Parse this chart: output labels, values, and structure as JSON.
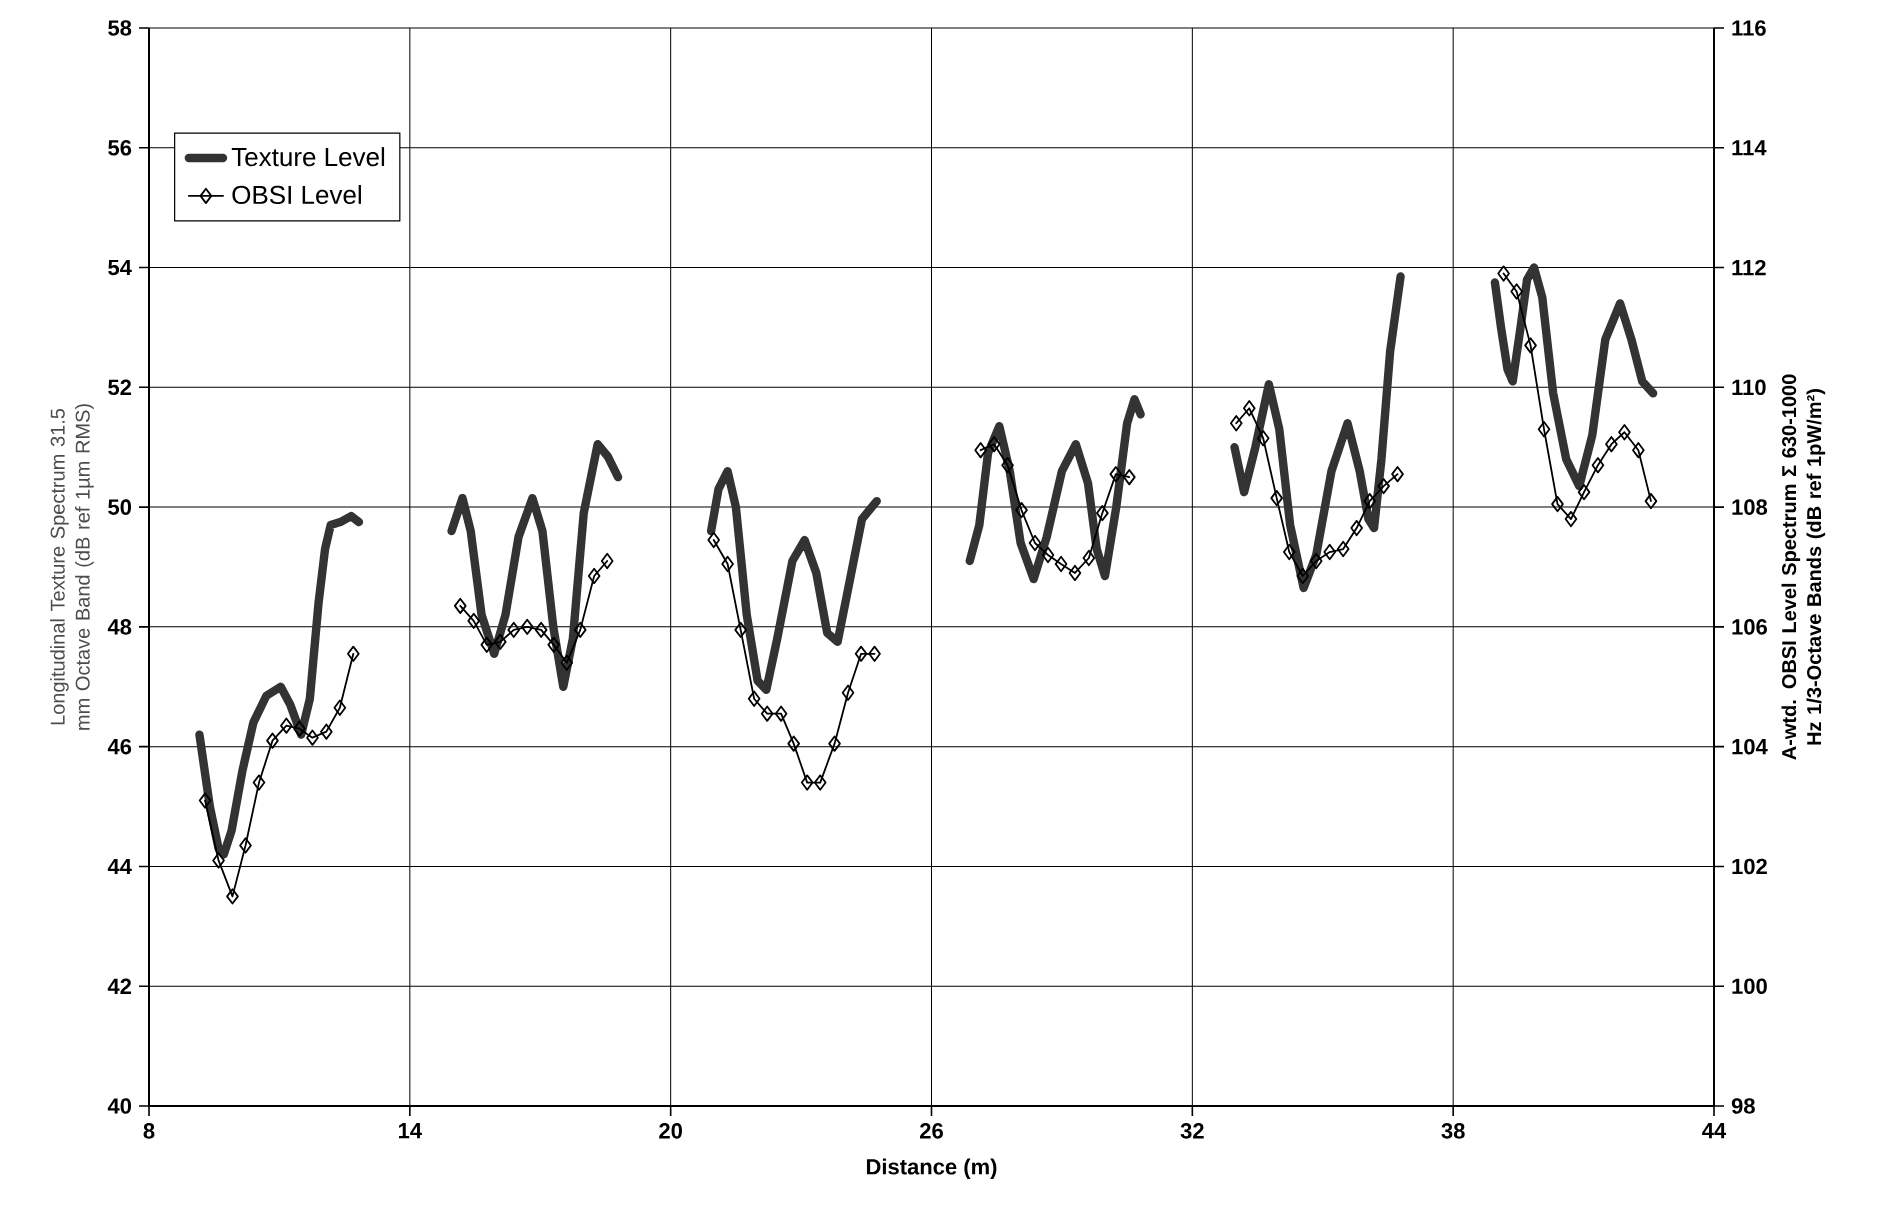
{
  "chart_data": {
    "type": "line",
    "xlabel": "Distance (m)",
    "ylabel": "Longitudinal Texture Spectrum 31.5 mm Octave Band (dB ref 1µm RMS)",
    "y2label": "A-wtd. OBSI Level Spectrum Σ 630-1000 Hz 1/3-Octave Bands (dB ref 1pW/m²)",
    "xlim": [
      8,
      44
    ],
    "xticks": [
      8,
      14,
      20,
      26,
      32,
      38,
      44
    ],
    "ylim": [
      40,
      58
    ],
    "yticks": [
      40,
      42,
      44,
      46,
      48,
      50,
      52,
      54,
      56,
      58
    ],
    "y2lim": [
      98,
      116
    ],
    "y2ticks": [
      98,
      100,
      102,
      104,
      106,
      108,
      110,
      112,
      114,
      116
    ],
    "grid": true,
    "legend": "top left",
    "line_style": "solid",
    "series": [
      {
        "name": "Texture Level",
        "color": "#333333",
        "marker": "none",
        "x": [
          9.16,
          9.4,
          9.6,
          9.72,
          9.9,
          10.15,
          10.4,
          10.7,
          11.03,
          11.25,
          11.5,
          11.7,
          11.9,
          12.05,
          12.18,
          12.4,
          12.65,
          12.83,
          13.9,
          14.96,
          15.21,
          15.4,
          15.65,
          15.94,
          16.2,
          16.5,
          16.82,
          17.05,
          17.3,
          17.53,
          17.75,
          18.0,
          18.32,
          18.55,
          18.79,
          19.9,
          20.93,
          21.1,
          21.31,
          21.5,
          21.75,
          22.0,
          22.2,
          22.45,
          22.8,
          23.08,
          23.35,
          23.6,
          23.84,
          24.1,
          24.4,
          24.74,
          25.8,
          26.88,
          27.1,
          27.3,
          27.56,
          27.8,
          28.05,
          28.35,
          28.65,
          29.0,
          29.32,
          29.6,
          29.8,
          29.99,
          30.25,
          30.5,
          30.67,
          30.81,
          31.9,
          32.97,
          33.19,
          33.45,
          33.76,
          34.0,
          34.25,
          34.56,
          34.85,
          35.2,
          35.57,
          35.85,
          36.05,
          36.18,
          36.35,
          36.55,
          36.79,
          37.9,
          38.96,
          39.1,
          39.25,
          39.37,
          39.55,
          39.7,
          39.86,
          40.05,
          40.3,
          40.6,
          40.9,
          41.2,
          41.5,
          41.84,
          42.1,
          42.35,
          42.6
        ],
        "values": [
          46.2,
          45.0,
          44.3,
          44.2,
          44.6,
          45.6,
          46.4,
          46.85,
          47.0,
          46.7,
          46.2,
          46.8,
          48.4,
          49.3,
          49.7,
          49.75,
          49.85,
          49.75,
          null,
          49.6,
          50.15,
          49.6,
          48.2,
          47.55,
          48.2,
          49.5,
          50.15,
          49.6,
          48.0,
          47.0,
          47.8,
          49.9,
          51.05,
          50.85,
          50.5,
          null,
          49.6,
          50.3,
          50.6,
          50.0,
          48.2,
          47.1,
          46.95,
          47.8,
          49.1,
          49.45,
          48.9,
          47.9,
          47.75,
          48.7,
          49.8,
          50.1,
          null,
          49.1,
          49.7,
          50.9,
          51.35,
          50.6,
          49.4,
          48.8,
          49.5,
          50.6,
          51.05,
          50.4,
          49.3,
          48.85,
          50.0,
          51.4,
          51.8,
          51.55,
          null,
          51.0,
          50.25,
          51.0,
          52.05,
          51.3,
          49.7,
          48.65,
          49.2,
          50.6,
          51.4,
          50.6,
          49.8,
          49.65,
          50.8,
          52.6,
          53.85,
          null,
          53.75,
          53.0,
          52.3,
          52.1,
          53.0,
          53.8,
          54.0,
          53.5,
          51.9,
          50.8,
          50.35,
          51.2,
          52.8,
          53.4,
          52.8,
          52.1,
          51.9
        ]
      },
      {
        "name": "OBSI Level",
        "color": "#000000",
        "marker": "diamond",
        "axis": "y2",
        "x": [
          9.29,
          9.6,
          9.92,
          10.22,
          10.53,
          10.84,
          11.16,
          11.46,
          11.76,
          12.08,
          12.39,
          12.7,
          13.9,
          15.16,
          15.47,
          15.77,
          16.08,
          16.39,
          16.7,
          17.02,
          17.31,
          17.61,
          17.92,
          18.24,
          18.54,
          19.8,
          20.99,
          21.31,
          21.61,
          21.92,
          22.22,
          22.54,
          22.83,
          23.14,
          23.44,
          23.77,
          24.08,
          24.38,
          24.69,
          25.9,
          27.13,
          27.44,
          27.75,
          28.07,
          28.38,
          28.68,
          28.98,
          29.3,
          29.62,
          29.93,
          30.24,
          30.55,
          31.8,
          33.01,
          33.31,
          33.63,
          33.94,
          34.23,
          34.54,
          34.85,
          35.16,
          35.47,
          35.78,
          36.08,
          36.4,
          36.72,
          37.9,
          39.16,
          39.46,
          39.78,
          40.09,
          40.4,
          40.71,
          41.01,
          41.33,
          41.64,
          41.94,
          42.26,
          42.55
        ],
        "values": [
          103.1,
          102.1,
          101.5,
          102.35,
          103.4,
          104.1,
          104.35,
          104.3,
          104.15,
          104.25,
          104.65,
          105.55,
          null,
          106.35,
          106.1,
          105.7,
          105.75,
          105.95,
          106.0,
          105.95,
          105.7,
          105.4,
          105.95,
          106.85,
          107.1,
          null,
          107.45,
          107.05,
          105.95,
          104.8,
          104.55,
          104.55,
          104.05,
          103.4,
          103.4,
          104.05,
          104.9,
          105.55,
          105.55,
          null,
          108.95,
          109.05,
          108.7,
          107.95,
          107.4,
          107.2,
          107.05,
          106.9,
          107.15,
          107.9,
          108.55,
          108.5,
          null,
          109.4,
          109.65,
          109.15,
          108.15,
          107.25,
          106.85,
          107.1,
          107.25,
          107.3,
          107.65,
          108.1,
          108.35,
          108.55,
          null,
          111.9,
          111.6,
          110.7,
          109.3,
          108.05,
          107.8,
          108.25,
          108.7,
          109.05,
          109.25,
          108.95,
          108.1
        ]
      }
    ]
  }
}
